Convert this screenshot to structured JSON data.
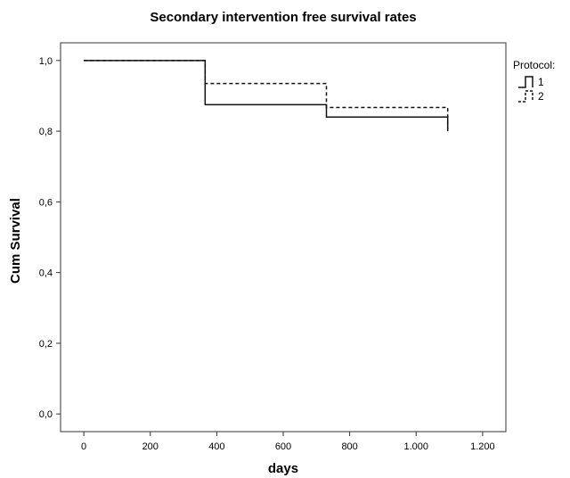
{
  "chart_data": {
    "type": "line",
    "step": true,
    "title": "Secondary intervention free survival rates",
    "xlabel": "days",
    "ylabel": "Cum Survival",
    "xlim": [
      -70,
      1270
    ],
    "ylim": [
      -0.05,
      1.05
    ],
    "x_ticks": [
      0,
      200,
      400,
      600,
      800,
      1000,
      1200
    ],
    "x_tick_labels": [
      "0",
      "200",
      "400",
      "600",
      "800",
      "1.000",
      "1.200"
    ],
    "y_ticks": [
      0,
      0.2,
      0.4,
      0.6,
      0.8,
      1.0
    ],
    "y_tick_labels": [
      "0,0",
      "0,2",
      "0,4",
      "0,6",
      "0,8",
      "1,0"
    ],
    "grid": false,
    "legend_title": "Protocol:",
    "legend_position": "top-right outside",
    "series": [
      {
        "name": "1",
        "style": "solid",
        "color": "#111111",
        "x": [
          0,
          365,
          730,
          1095,
          1095
        ],
        "y": [
          1.0,
          0.875,
          0.84,
          0.84,
          0.8
        ]
      },
      {
        "name": "2",
        "style": "dashed",
        "color": "#111111",
        "x": [
          0,
          365,
          730,
          1095,
          1095
        ],
        "y": [
          1.0,
          0.935,
          0.867,
          0.867,
          0.8
        ]
      }
    ]
  }
}
